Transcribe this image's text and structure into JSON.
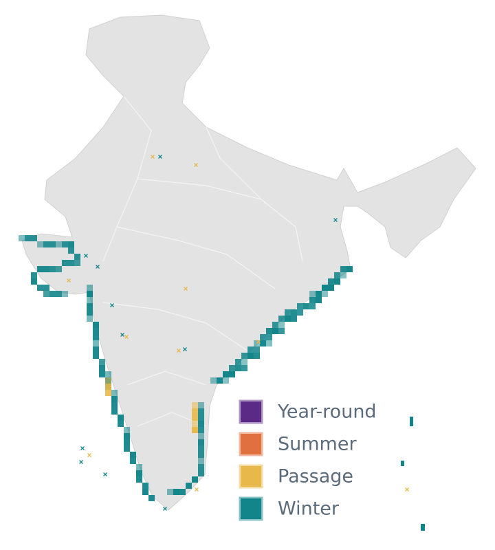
{
  "legend": {
    "items": [
      {
        "label": "Year-round",
        "color": "#5b2a86"
      },
      {
        "label": "Summer",
        "color": "#e07040"
      },
      {
        "label": "Passage",
        "color": "#e8b84a"
      },
      {
        "label": "Winter",
        "color": "#12858a"
      }
    ]
  }
}
